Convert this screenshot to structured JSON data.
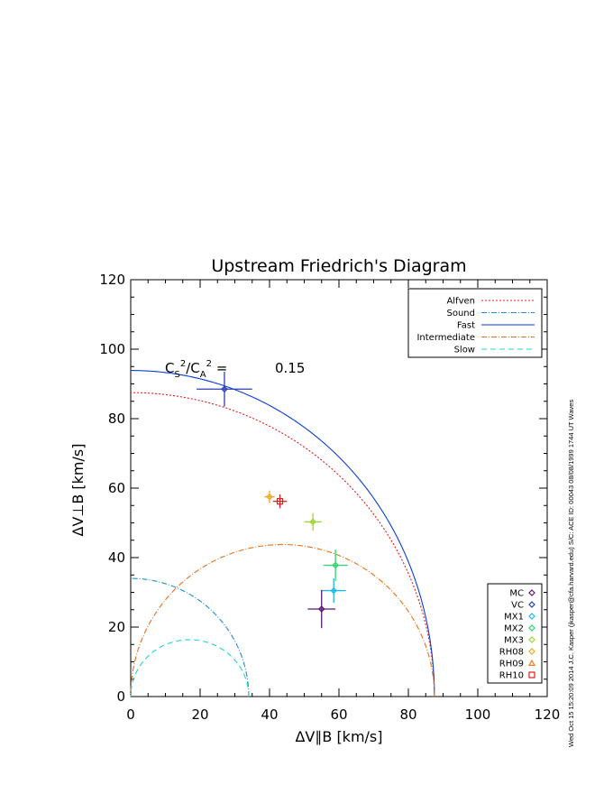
{
  "chart_data": {
    "type": "scatter",
    "title": "Upstream Friedrich's Diagram",
    "xlabel": "ΔV∥B [km/s]",
    "ylabel": "ΔV⊥B [km/s]",
    "xlim": [
      0,
      120
    ],
    "ylim": [
      0,
      120
    ],
    "x_ticks": [
      "0",
      "20",
      "40",
      "60",
      "80",
      "100",
      "120"
    ],
    "y_ticks": [
      "0",
      "20",
      "40",
      "60",
      "80",
      "100",
      "120"
    ],
    "grid": false,
    "annotation": {
      "prefix": "C",
      "sub1": "S",
      "sup1": "2",
      "sep": "/C",
      "sub2": "A",
      "sup2": "2",
      "eq": " =",
      "value": "0.15"
    },
    "speeds": {
      "alfven": 87.5,
      "sound": 34.0,
      "fast": 94.0
    },
    "curves_legend": [
      {
        "name": "Alfven",
        "key": "alfven",
        "color": "#e41a1c",
        "dash": "2,2"
      },
      {
        "name": "Sound",
        "key": "sound",
        "color": "#1f8fd6",
        "dash": "6,2,1,2"
      },
      {
        "name": "Fast",
        "key": "fast",
        "color": "#0a3fd4",
        "dash": ""
      },
      {
        "name": "Intermediate",
        "key": "intermediate",
        "color": "#e8701a",
        "dash": "6,2,1,2"
      },
      {
        "name": "Slow",
        "key": "slow",
        "color": "#22d4d0",
        "dash": "6,4"
      }
    ],
    "points_legend": [
      {
        "name": "MC",
        "color": "#5a1a6e",
        "marker": "diamond"
      },
      {
        "name": "VC",
        "color": "#2a3fb0",
        "marker": "diamond"
      },
      {
        "name": "MX1",
        "color": "#1fb8e0",
        "marker": "diamond"
      },
      {
        "name": "MX2",
        "color": "#2ad66a",
        "marker": "diamond"
      },
      {
        "name": "MX3",
        "color": "#9ad62a",
        "marker": "diamond"
      },
      {
        "name": "RH08",
        "color": "#f0a820",
        "marker": "diamond"
      },
      {
        "name": "RH09",
        "color": "#f07a20",
        "marker": "triangle"
      },
      {
        "name": "RH10",
        "color": "#e02020",
        "marker": "square"
      }
    ],
    "points": [
      {
        "name": "VC",
        "x": 27,
        "y": 88.5,
        "xerr": 8,
        "yerr": 5,
        "color": "#2a3fb0",
        "marker": "diamond"
      },
      {
        "name": "RH08",
        "x": 40,
        "y": 57.5,
        "xerr": 1.5,
        "yerr": 1.8,
        "color": "#f0a820",
        "marker": "diamond"
      },
      {
        "name": "RH10",
        "x": 43,
        "y": 56.2,
        "xerr": 2,
        "yerr": 2,
        "color": "#e02020",
        "marker": "square"
      },
      {
        "name": "MX3",
        "x": 52.5,
        "y": 50.3,
        "xerr": 2.5,
        "yerr": 2.5,
        "color": "#9ad62a",
        "marker": "diamond"
      },
      {
        "name": "MX2",
        "x": 59,
        "y": 37.8,
        "xerr": 3.5,
        "yerr": 4.5,
        "color": "#2ad66a",
        "marker": "diamond"
      },
      {
        "name": "MX1",
        "x": 58.5,
        "y": 30.5,
        "xerr": 3.5,
        "yerr": 3.5,
        "color": "#1fb8e0",
        "marker": "diamond"
      },
      {
        "name": "MC",
        "x": 55,
        "y": 25.2,
        "xerr": 4,
        "yerr": 5.5,
        "color": "#5a1a6e",
        "marker": "diamond"
      }
    ]
  },
  "side_text": "Wed Oct 15 15:20:09 2014   J.C. Kasper (jkasper@cfa.harvard.edu)   S/C: ACE  ID: 00043  08/08/1999   1744 UT Waves"
}
